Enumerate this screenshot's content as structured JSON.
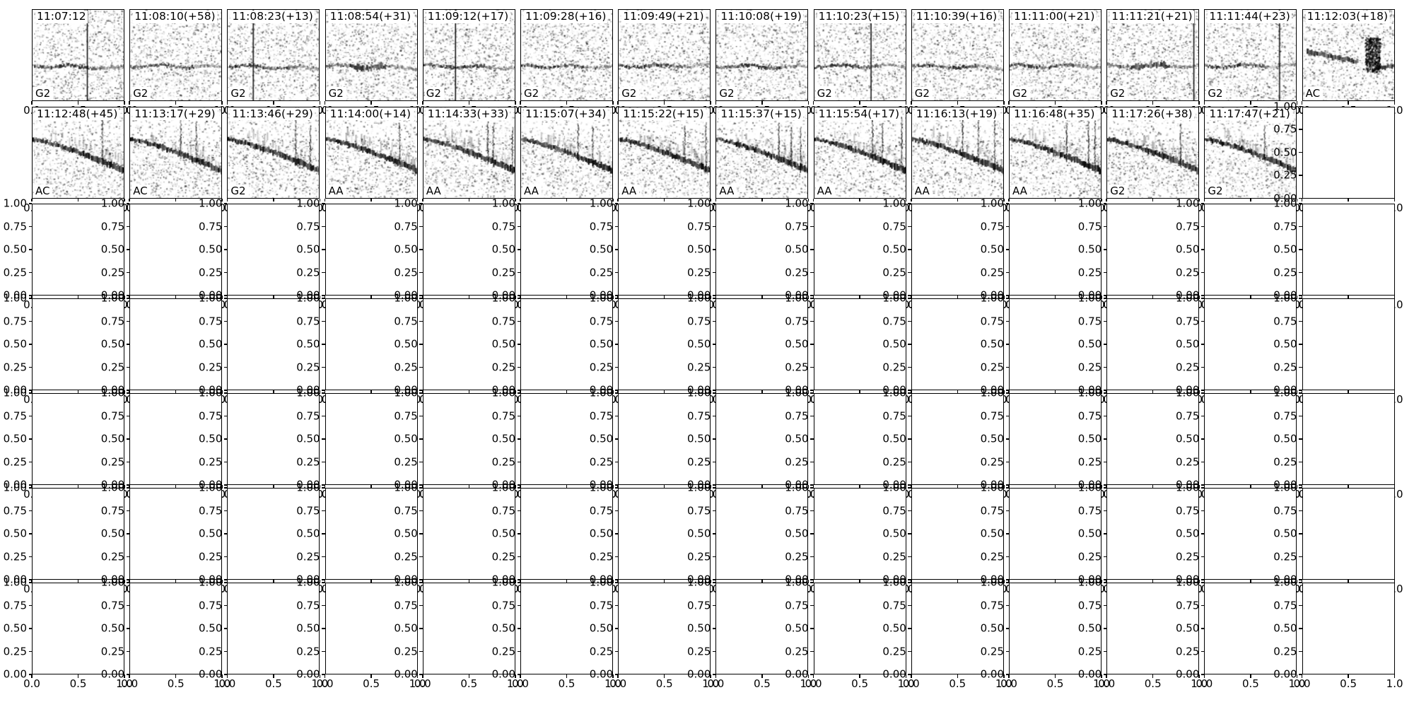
{
  "figure_kind": "spectrogram detection montage (matplotlib-style grid of subplots)",
  "grid": {
    "rows": 7,
    "cols": 14,
    "spectrogram_cells": 27,
    "empty_axes_cells": 71
  },
  "axis": {
    "y_tick_labels": [
      "1.00",
      "0.75",
      "0.50",
      "0.25",
      "0.00"
    ],
    "x_tick_labels": [
      "0.0",
      "0.5",
      "1.0"
    ],
    "ylim": [
      0,
      1
    ],
    "xlim": [
      0,
      1
    ]
  },
  "colors": {
    "background": "#ffffff",
    "foreground": "#000000"
  },
  "chart_data": {
    "type": "heatmap",
    "subtype": "spectrogram_thumbnail_grid",
    "note": "Top two rows: 27 grayscale spectrogram thumbnails, each titled with a detection time (+seconds since previous) and a species/class code at lower left. Remaining cells: empty axes with x ticks 0.0-1.0 and y ticks 0.00-1.00.",
    "panels": [
      {
        "row": 0,
        "col": 0,
        "time": "11:07:12",
        "species": "G2",
        "pattern": "hband",
        "vlines": [
          0.6
        ],
        "spikes": []
      },
      {
        "row": 0,
        "col": 1,
        "time": "11:08:10(+58)",
        "species": "G2",
        "pattern": "hband",
        "vlines": [],
        "spikes": []
      },
      {
        "row": 0,
        "col": 2,
        "time": "11:08:23(+13)",
        "species": "G2",
        "pattern": "hband",
        "vlines": [
          0.28
        ],
        "spikes": []
      },
      {
        "row": 0,
        "col": 3,
        "time": "11:08:54(+31)",
        "species": "G2",
        "pattern": "hband-messy",
        "vlines": [],
        "spikes": []
      },
      {
        "row": 0,
        "col": 4,
        "time": "11:09:12(+17)",
        "species": "G2",
        "pattern": "hband",
        "vlines": [
          0.35
        ],
        "spikes": []
      },
      {
        "row": 0,
        "col": 5,
        "time": "11:09:28(+16)",
        "species": "G2",
        "pattern": "hband",
        "vlines": [],
        "spikes": []
      },
      {
        "row": 0,
        "col": 6,
        "time": "11:09:49(+21)",
        "species": "G2",
        "pattern": "hband",
        "vlines": [],
        "spikes": []
      },
      {
        "row": 0,
        "col": 7,
        "time": "11:10:08(+19)",
        "species": "G2",
        "pattern": "hband",
        "vlines": [],
        "spikes": []
      },
      {
        "row": 0,
        "col": 8,
        "time": "11:10:23(+15)",
        "species": "G2",
        "pattern": "hband",
        "vlines": [
          0.62
        ],
        "spikes": []
      },
      {
        "row": 0,
        "col": 9,
        "time": "11:10:39(+16)",
        "species": "G2",
        "pattern": "hband",
        "vlines": [],
        "spikes": []
      },
      {
        "row": 0,
        "col": 10,
        "time": "11:11:00(+21)",
        "species": "G2",
        "pattern": "hband",
        "vlines": [],
        "spikes": []
      },
      {
        "row": 0,
        "col": 11,
        "time": "11:11:21(+21)",
        "species": "G2",
        "pattern": "hband-messy",
        "vlines": [
          0.95
        ],
        "spikes": []
      },
      {
        "row": 0,
        "col": 12,
        "time": "11:11:44(+23)",
        "species": "G2",
        "pattern": "hband",
        "vlines": [
          0.82
        ],
        "spikes": []
      },
      {
        "row": 0,
        "col": 13,
        "time": "11:12:03(+18)",
        "species": "AC",
        "pattern": "ac",
        "vlines": [],
        "spikes": []
      },
      {
        "row": 1,
        "col": 0,
        "time": "11:12:48(+45)",
        "species": "AC",
        "pattern": "desc",
        "vlines": [],
        "spikes": [
          0.76
        ]
      },
      {
        "row": 1,
        "col": 1,
        "time": "11:13:17(+29)",
        "species": "AC",
        "pattern": "desc",
        "vlines": [],
        "spikes": [
          0.55,
          0.72
        ]
      },
      {
        "row": 1,
        "col": 2,
        "time": "11:13:46(+29)",
        "species": "G2",
        "pattern": "desc",
        "vlines": [],
        "spikes": [
          0.74,
          0.9
        ]
      },
      {
        "row": 1,
        "col": 3,
        "time": "11:14:00(+14)",
        "species": "AA",
        "pattern": "desc",
        "vlines": [],
        "spikes": [
          0.8
        ]
      },
      {
        "row": 1,
        "col": 4,
        "time": "11:14:33(+33)",
        "species": "AA",
        "pattern": "desc",
        "vlines": [],
        "spikes": [
          0.7,
          0.76,
          0.97
        ]
      },
      {
        "row": 1,
        "col": 5,
        "time": "11:15:07(+34)",
        "species": "AA",
        "pattern": "desc",
        "vlines": [],
        "spikes": [
          0.62,
          0.78
        ]
      },
      {
        "row": 1,
        "col": 6,
        "time": "11:15:22(+15)",
        "species": "AA",
        "pattern": "desc",
        "vlines": [],
        "spikes": [
          0.72,
          0.95
        ]
      },
      {
        "row": 1,
        "col": 7,
        "time": "11:15:37(+15)",
        "species": "AA",
        "pattern": "desc",
        "vlines": [],
        "spikes": [
          0.68,
          0.82,
          0.92
        ]
      },
      {
        "row": 1,
        "col": 8,
        "time": "11:15:54(+17)",
        "species": "AA",
        "pattern": "desc",
        "vlines": [],
        "spikes": [
          0.63,
          0.74,
          0.95
        ]
      },
      {
        "row": 1,
        "col": 9,
        "time": "11:16:13(+19)",
        "species": "AA",
        "pattern": "desc",
        "vlines": [],
        "spikes": [
          0.55,
          0.72,
          0.9
        ]
      },
      {
        "row": 1,
        "col": 10,
        "time": "11:16:48(+35)",
        "species": "AA",
        "pattern": "desc",
        "vlines": [],
        "spikes": [
          0.62,
          0.86,
          0.93
        ]
      },
      {
        "row": 1,
        "col": 11,
        "time": "11:17:26(+38)",
        "species": "G2",
        "pattern": "desc",
        "vlines": [],
        "spikes": [
          0.8
        ]
      },
      {
        "row": 1,
        "col": 12,
        "time": "11:17:47(+21)",
        "species": "G2",
        "pattern": "desc",
        "vlines": [],
        "spikes": [
          0.65
        ]
      }
    ],
    "empty_axes": {
      "cells": "row 1 col 13, plus all 14 columns of rows 2-6 (0-indexed)",
      "y_tick_labels": [
        "1.00",
        "0.75",
        "0.50",
        "0.25",
        "0.00"
      ],
      "x_tick_labels": [
        "0.0",
        "0.5",
        "1.0"
      ]
    }
  }
}
